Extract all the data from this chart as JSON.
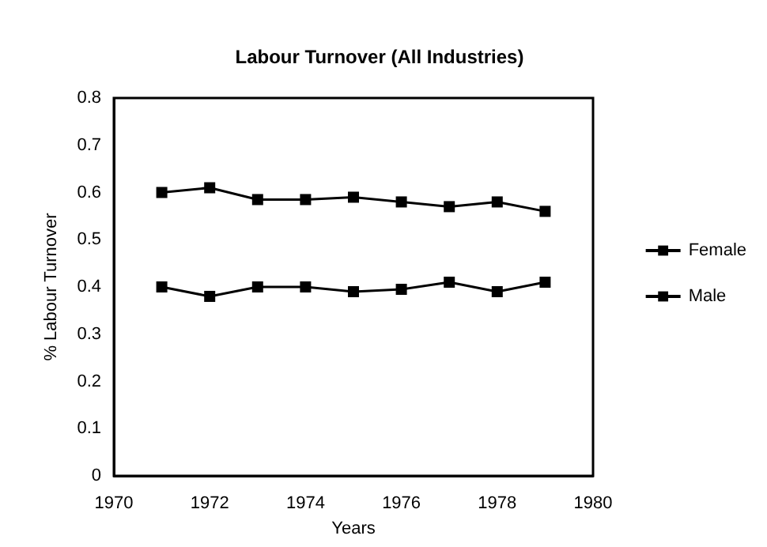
{
  "chart_data": {
    "type": "line",
    "title": "Labour Turnover (All Industries)",
    "xlabel": "Years",
    "ylabel": "% Labour Turnover",
    "x": [
      1971,
      1972,
      1973,
      1974,
      1975,
      1976,
      1977,
      1978,
      1979
    ],
    "series": [
      {
        "name": "Female",
        "color": "#000000",
        "values": [
          0.6,
          0.61,
          0.585,
          0.585,
          0.59,
          0.58,
          0.57,
          0.58,
          0.56
        ]
      },
      {
        "name": "Male",
        "color": "#000000",
        "values": [
          0.4,
          0.38,
          0.4,
          0.4,
          0.39,
          0.395,
          0.41,
          0.39,
          0.41
        ]
      }
    ],
    "xlim": [
      1970,
      1980
    ],
    "xticks": [
      1970,
      1972,
      1974,
      1976,
      1978,
      1980
    ],
    "ylim": [
      0,
      0.8
    ],
    "yticks": [
      0,
      0.1,
      0.2,
      0.3,
      0.4,
      0.5,
      0.6,
      0.7,
      0.8
    ],
    "grid": false,
    "legend": "right",
    "marker": "square",
    "line_style": "solid"
  }
}
